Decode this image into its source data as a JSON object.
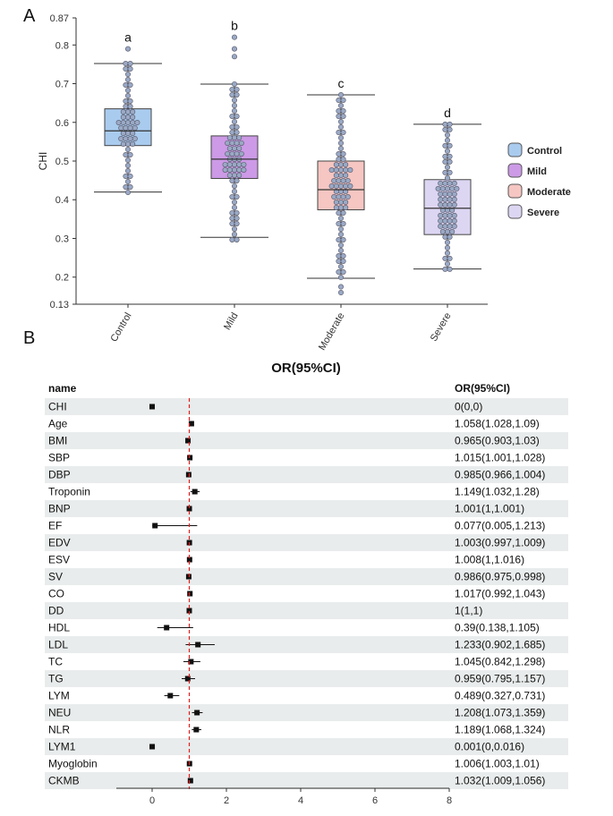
{
  "panels": {
    "a_letter": "A",
    "b_letter": "B"
  },
  "chart_data": [
    {
      "type": "box",
      "ylabel": "CHI",
      "ylim": [
        0.13,
        0.87
      ],
      "yticks": [
        0.13,
        0.2,
        0.3,
        0.4,
        0.5,
        0.6,
        0.7,
        0.8,
        0.87
      ],
      "categories": [
        "Control",
        "Mild",
        "Moderate",
        "Severe"
      ],
      "colors": [
        "#a9cbee",
        "#cc9ae6",
        "#f5c6c2",
        "#ddd6f2"
      ],
      "dot_color": "#9aa9c5",
      "boxes": [
        {
          "name": "Control",
          "min": 0.42,
          "q1": 0.54,
          "median": 0.578,
          "q3": 0.635,
          "max": 0.752,
          "extreme": [
            0.79
          ],
          "sig": "a"
        },
        {
          "name": "Mild",
          "min": 0.303,
          "q1": 0.455,
          "median": 0.505,
          "q3": 0.565,
          "max": 0.699,
          "extreme": [
            0.77,
            0.79,
            0.82
          ],
          "sig": "b"
        },
        {
          "name": "Moderate",
          "min": 0.197,
          "q1": 0.374,
          "median": 0.426,
          "q3": 0.5,
          "max": 0.671,
          "extreme": [
            0.16,
            0.175
          ],
          "sig": "c"
        },
        {
          "name": "Severe",
          "min": 0.221,
          "q1": 0.31,
          "median": 0.378,
          "q3": 0.452,
          "max": 0.595,
          "extreme": [],
          "sig": "d"
        }
      ],
      "legend": [
        "Control",
        "Mild",
        "Moderate",
        "Severe"
      ]
    },
    {
      "type": "forest",
      "title": "OR(95%CI)",
      "col_name": "name",
      "col_or": "OR(95%CI)",
      "xlim": [
        -1,
        8
      ],
      "xticks": [
        0,
        2,
        4,
        6,
        8
      ],
      "ref_line": 1,
      "rows": [
        {
          "name": "CHI",
          "or": 0,
          "lo": 0,
          "hi": 0,
          "label": "0(0,0)"
        },
        {
          "name": "Age",
          "or": 1.058,
          "lo": 1.028,
          "hi": 1.09,
          "label": "1.058(1.028,1.09)"
        },
        {
          "name": "BMI",
          "or": 0.965,
          "lo": 0.903,
          "hi": 1.03,
          "label": "0.965(0.903,1.03)"
        },
        {
          "name": "SBP",
          "or": 1.015,
          "lo": 1.001,
          "hi": 1.028,
          "label": "1.015(1.001,1.028)"
        },
        {
          "name": "DBP",
          "or": 0.985,
          "lo": 0.966,
          "hi": 1.004,
          "label": "0.985(0.966,1.004)"
        },
        {
          "name": "Troponin",
          "or": 1.149,
          "lo": 1.032,
          "hi": 1.28,
          "label": "1.149(1.032,1.28)"
        },
        {
          "name": "BNP",
          "or": 1.001,
          "lo": 1,
          "hi": 1.001,
          "label": "1.001(1,1.001)"
        },
        {
          "name": "EF",
          "or": 0.077,
          "lo": 0.005,
          "hi": 1.213,
          "label": "0.077(0.005,1.213)"
        },
        {
          "name": "EDV",
          "or": 1.003,
          "lo": 0.997,
          "hi": 1.009,
          "label": "1.003(0.997,1.009)"
        },
        {
          "name": "ESV",
          "or": 1.008,
          "lo": 1,
          "hi": 1.016,
          "label": "1.008(1,1.016)"
        },
        {
          "name": "SV",
          "or": 0.986,
          "lo": 0.975,
          "hi": 0.998,
          "label": "0.986(0.975,0.998)"
        },
        {
          "name": "CO",
          "or": 1.017,
          "lo": 0.992,
          "hi": 1.043,
          "label": "1.017(0.992,1.043)"
        },
        {
          "name": "DD",
          "or": 1,
          "lo": 1,
          "hi": 1,
          "label": "1(1,1)"
        },
        {
          "name": "HDL",
          "or": 0.39,
          "lo": 0.138,
          "hi": 1.105,
          "label": "0.39(0.138,1.105)"
        },
        {
          "name": "LDL",
          "or": 1.233,
          "lo": 0.902,
          "hi": 1.685,
          "label": "1.233(0.902,1.685)"
        },
        {
          "name": "TC",
          "or": 1.045,
          "lo": 0.842,
          "hi": 1.298,
          "label": "1.045(0.842,1.298)"
        },
        {
          "name": "TG",
          "or": 0.959,
          "lo": 0.795,
          "hi": 1.157,
          "label": "0.959(0.795,1.157)"
        },
        {
          "name": "LYM",
          "or": 0.489,
          "lo": 0.327,
          "hi": 0.731,
          "label": "0.489(0.327,0.731)"
        },
        {
          "name": "NEU",
          "or": 1.208,
          "lo": 1.073,
          "hi": 1.359,
          "label": "1.208(1.073,1.359)"
        },
        {
          "name": "NLR",
          "or": 1.189,
          "lo": 1.068,
          "hi": 1.324,
          "label": "1.189(1.068,1.324)"
        },
        {
          "name": "LYM1",
          "or": 0.001,
          "lo": 0,
          "hi": 0.016,
          "label": "0.001(0,0.016)"
        },
        {
          "name": "Myoglobin",
          "or": 1.006,
          "lo": 1.003,
          "hi": 1.01,
          "label": "1.006(1.003,1.01)"
        },
        {
          "name": "CKMB",
          "or": 1.032,
          "lo": 1.009,
          "hi": 1.056,
          "label": "1.032(1.009,1.056)"
        }
      ]
    }
  ]
}
